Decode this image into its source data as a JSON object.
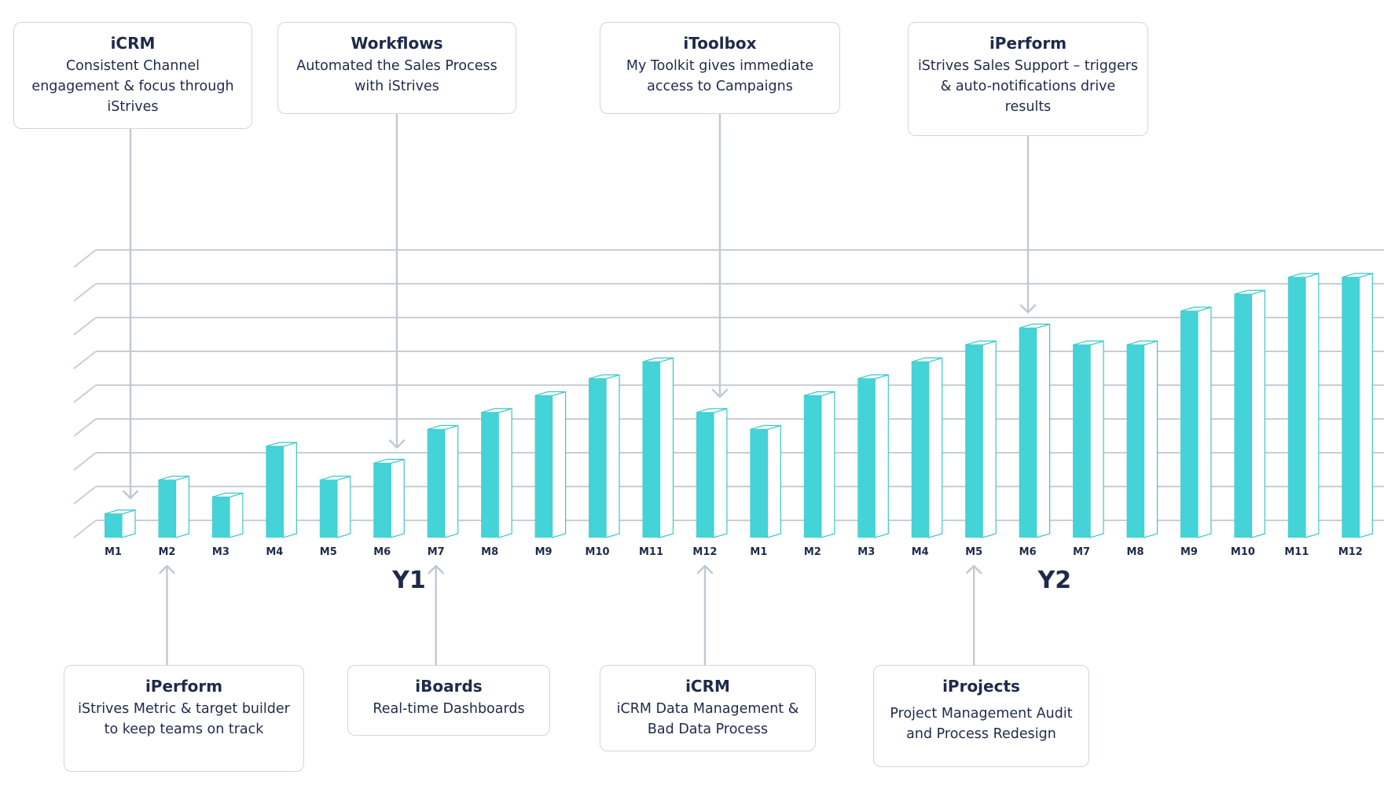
{
  "chart_data": {
    "type": "bar",
    "title": "",
    "xlabel": "",
    "ylabel": "",
    "grid": true,
    "ylim": [
      0,
      9
    ],
    "groups": [
      {
        "label": "Y1",
        "categories": [
          "M1",
          "M2",
          "M3",
          "M4",
          "M5",
          "M6",
          "M7",
          "M8",
          "M9",
          "M10",
          "M11",
          "M12"
        ]
      },
      {
        "label": "Y2",
        "categories": [
          "M1",
          "M2",
          "M3",
          "M4",
          "M5",
          "M6",
          "M7",
          "M8",
          "M9",
          "M10",
          "M11",
          "M12"
        ]
      }
    ],
    "values": [
      0.7,
      1.7,
      1.2,
      2.7,
      1.7,
      2.2,
      3.2,
      3.7,
      4.2,
      4.7,
      5.2,
      3.7,
      3.2,
      4.2,
      4.7,
      5.2,
      5.7,
      6.2,
      5.7,
      5.7,
      6.7,
      7.2,
      7.7,
      7.7
    ],
    "colors": {
      "bar": "#44d3d6",
      "bar_edge": "#3cc7ca",
      "grid": "#c8ced6",
      "arrow": "#c2c8d2",
      "text": "#1e2a4a"
    }
  },
  "callouts": {
    "top": [
      {
        "title": "iCRM",
        "desc": "Consistent Channel engagement & focus through iStrives",
        "target": {
          "year": "Y1",
          "month": "M1"
        }
      },
      {
        "title": "Workflows",
        "desc": "Automated the Sales Process with iStrives",
        "target": {
          "year": "Y1",
          "month": "M6"
        }
      },
      {
        "title": "iToolbox",
        "desc": "My Toolkit gives immediate access to Campaigns",
        "target": {
          "year": "Y1",
          "month": "M12"
        }
      },
      {
        "title": "iPerform",
        "desc": "iStrives Sales Support – triggers & auto-notifications drive results",
        "target": {
          "year": "Y2",
          "month": "M6"
        }
      }
    ],
    "bottom": [
      {
        "title": "iPerform",
        "desc": "iStrives Metric & target builder to keep teams on track",
        "target": {
          "year": "Y1",
          "month": "M2"
        }
      },
      {
        "title": "iBoards",
        "desc": "Real-time Dashboards",
        "target": {
          "year": "Y1",
          "month": "M7"
        }
      },
      {
        "title": "iCRM",
        "desc": "iCRM Data Management & Bad Data Process",
        "target": {
          "year": "Y1",
          "month": "M12"
        }
      },
      {
        "title": "iProjects",
        "desc": "Project Management Audit and Process Redesign",
        "target": {
          "year": "Y2",
          "month": "M5"
        }
      }
    ]
  }
}
